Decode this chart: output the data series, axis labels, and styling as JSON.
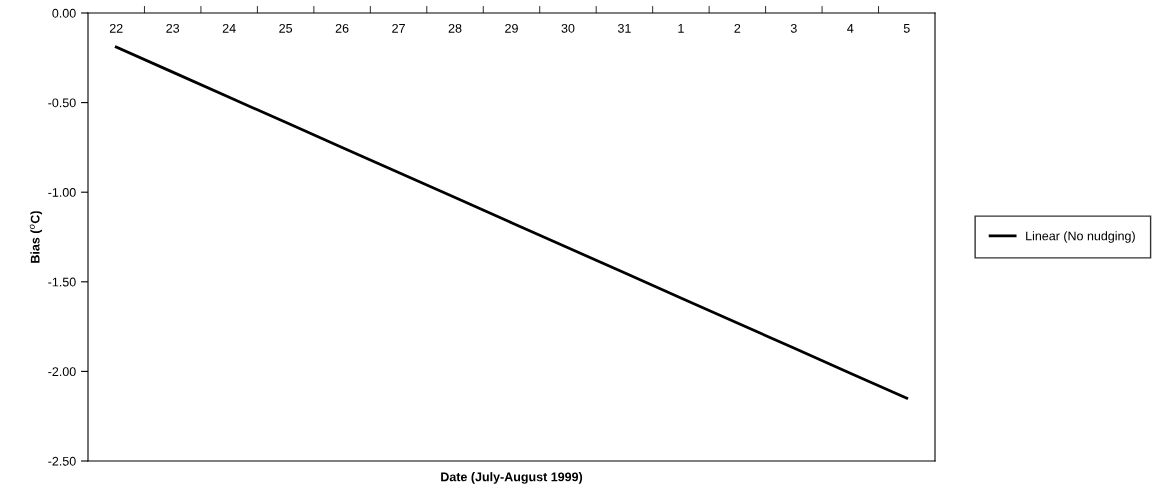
{
  "chart_data": {
    "type": "line",
    "xlabel": "Date (July-August 1999)",
    "ylabel": "Bias ($^{o}$C)",
    "categories": [
      "22",
      "23",
      "24",
      "25",
      "26",
      "27",
      "28",
      "29",
      "30",
      "31",
      "1",
      "2",
      "3",
      "4",
      "5"
    ],
    "series": [
      {
        "name": "Linear (No nudging)",
        "color": "#000000",
        "values": [
          -0.19,
          -0.33,
          -0.47,
          -0.61,
          -0.75,
          -0.89,
          -1.03,
          -1.17,
          -1.31,
          -1.45,
          -1.59,
          -1.73,
          -1.87,
          -2.01,
          -2.15
        ]
      }
    ],
    "ylim": [
      -2.5,
      0
    ],
    "yticks": [
      {
        "value": -2.5,
        "label": "-2.50"
      },
      {
        "value": -2.0,
        "label": "-2.00"
      },
      {
        "value": -1.5,
        "label": "-1.50"
      },
      {
        "value": -1.0,
        "label": "-1.00"
      },
      {
        "value": -0.5,
        "label": "-0.50"
      },
      {
        "value": 0,
        "label": "0.00"
      }
    ],
    "grid": false,
    "legend": "right",
    "marker": "none",
    "line_style": "solid"
  }
}
